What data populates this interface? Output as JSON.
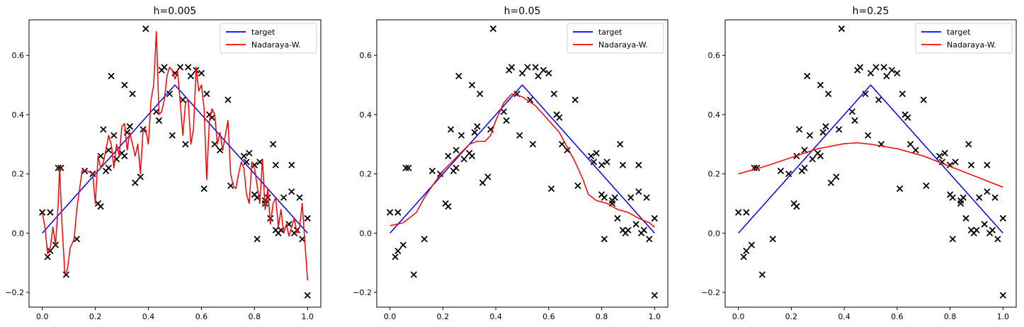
{
  "chart_data": [
    {
      "type": "line",
      "title": "h=0.005",
      "xlim": [
        -0.05,
        1.05
      ],
      "ylim": [
        -0.25,
        0.72
      ],
      "xticks": [
        "0.0",
        "0.2",
        "0.4",
        "0.6",
        "0.8",
        "1.0"
      ],
      "yticks": [
        "−0.2",
        "0.0",
        "0.2",
        "0.4",
        "0.6"
      ],
      "legend": {
        "position": "top-right",
        "entries": [
          "target",
          "Nadaraya-W."
        ]
      },
      "colors": {
        "target": "#0000ff",
        "fit": "#ff0000",
        "points": "#000000"
      },
      "series": [
        {
          "name": "target",
          "x": [
            0.0,
            0.5,
            1.0
          ],
          "y": [
            0.0,
            0.5,
            0.0
          ]
        },
        {
          "name": "Nadaraya-W.",
          "x": [
            0.0,
            0.01,
            0.02,
            0.03,
            0.04,
            0.05,
            0.06,
            0.065,
            0.075,
            0.085,
            0.095,
            0.105,
            0.12,
            0.13,
            0.15,
            0.17,
            0.19,
            0.2,
            0.21,
            0.22,
            0.23,
            0.24,
            0.25,
            0.26,
            0.27,
            0.28,
            0.29,
            0.3,
            0.31,
            0.32,
            0.33,
            0.34,
            0.35,
            0.36,
            0.37,
            0.38,
            0.39,
            0.4,
            0.41,
            0.42,
            0.43,
            0.44,
            0.45,
            0.46,
            0.47,
            0.48,
            0.49,
            0.5,
            0.51,
            0.52,
            0.53,
            0.54,
            0.55,
            0.56,
            0.57,
            0.58,
            0.59,
            0.6,
            0.61,
            0.62,
            0.63,
            0.64,
            0.65,
            0.66,
            0.67,
            0.68,
            0.69,
            0.7,
            0.71,
            0.72,
            0.73,
            0.74,
            0.75,
            0.76,
            0.77,
            0.78,
            0.79,
            0.8,
            0.81,
            0.82,
            0.83,
            0.84,
            0.85,
            0.86,
            0.87,
            0.88,
            0.89,
            0.9,
            0.91,
            0.92,
            0.93,
            0.94,
            0.95,
            0.96,
            0.97,
            0.98,
            0.99,
            1.0
          ],
          "y": [
            0.07,
            0.02,
            -0.07,
            -0.05,
            0.02,
            -0.04,
            0.1,
            0.22,
            0.02,
            -0.14,
            -0.12,
            -0.05,
            -0.02,
            0.08,
            0.21,
            0.21,
            0.2,
            0.1,
            0.26,
            0.22,
            0.24,
            0.28,
            0.33,
            0.3,
            0.22,
            0.3,
            0.26,
            0.36,
            0.37,
            0.28,
            0.34,
            0.3,
            0.26,
            0.3,
            0.2,
            0.35,
            0.35,
            0.3,
            0.45,
            0.5,
            0.68,
            0.4,
            0.41,
            0.45,
            0.53,
            0.56,
            0.55,
            0.52,
            0.55,
            0.44,
            0.33,
            0.44,
            0.45,
            0.3,
            0.35,
            0.56,
            0.48,
            0.5,
            0.42,
            0.18,
            0.38,
            0.42,
            0.4,
            0.3,
            0.34,
            0.28,
            0.33,
            0.38,
            0.2,
            0.16,
            0.15,
            0.2,
            0.24,
            0.22,
            0.13,
            0.1,
            0.24,
            0.22,
            0.16,
            0.1,
            0.25,
            0.08,
            0.15,
            0.03,
            0.1,
            0.12,
            0.02,
            0.08,
            0.0,
            0.03,
            -0.01,
            0.02,
            0.05,
            0.0,
            0.02,
            0.1,
            -0.03,
            -0.16
          ]
        }
      ],
      "points": {
        "x": [
          0.0,
          0.02,
          0.03,
          0.03,
          0.05,
          0.06,
          0.07,
          0.09,
          0.13,
          0.16,
          0.19,
          0.21,
          0.22,
          0.22,
          0.23,
          0.24,
          0.25,
          0.25,
          0.26,
          0.27,
          0.28,
          0.3,
          0.31,
          0.31,
          0.32,
          0.33,
          0.34,
          0.35,
          0.37,
          0.38,
          0.39,
          0.43,
          0.44,
          0.45,
          0.46,
          0.48,
          0.49,
          0.5,
          0.52,
          0.53,
          0.54,
          0.55,
          0.56,
          0.58,
          0.6,
          0.61,
          0.62,
          0.63,
          0.64,
          0.65,
          0.67,
          0.7,
          0.71,
          0.76,
          0.77,
          0.78,
          0.8,
          0.8,
          0.81,
          0.81,
          0.82,
          0.84,
          0.84,
          0.85,
          0.86,
          0.87,
          0.88,
          0.88,
          0.89,
          0.9,
          0.91,
          0.93,
          0.94,
          0.94,
          0.95,
          0.96,
          0.97,
          0.98,
          1.0,
          1.0
        ],
        "y": [
          0.07,
          -0.08,
          -0.06,
          0.07,
          -0.04,
          0.22,
          0.22,
          -0.14,
          -0.02,
          0.21,
          0.2,
          0.1,
          0.09,
          0.26,
          0.35,
          0.21,
          0.22,
          0.28,
          0.53,
          0.33,
          0.25,
          0.27,
          0.5,
          0.26,
          0.34,
          0.36,
          0.47,
          0.17,
          0.19,
          0.35,
          0.69,
          0.41,
          0.38,
          0.55,
          0.56,
          0.47,
          0.33,
          0.54,
          0.56,
          0.45,
          0.3,
          0.56,
          0.53,
          0.55,
          0.54,
          0.15,
          0.47,
          0.4,
          0.39,
          0.3,
          0.28,
          0.45,
          0.16,
          0.26,
          0.24,
          0.27,
          0.23,
          0.13,
          -0.02,
          0.12,
          0.24,
          0.1,
          0.11,
          0.12,
          0.05,
          0.3,
          0.23,
          0.01,
          0.0,
          0.01,
          0.12,
          0.03,
          0.14,
          0.23,
          0.0,
          0.01,
          0.12,
          -0.02,
          0.05,
          -0.21
        ]
      }
    },
    {
      "type": "line",
      "title": "h=0.05",
      "xlim": [
        -0.05,
        1.05
      ],
      "ylim": [
        -0.25,
        0.72
      ],
      "xticks": [
        "0.0",
        "0.2",
        "0.4",
        "0.6",
        "0.8",
        "1.0"
      ],
      "yticks": [
        "−0.2",
        "0.0",
        "0.2",
        "0.4",
        "0.6"
      ],
      "legend": {
        "position": "top-right",
        "entries": [
          "target",
          "Nadaraya-W."
        ]
      },
      "colors": {
        "target": "#0000ff",
        "fit": "#ff0000",
        "points": "#000000"
      },
      "series": [
        {
          "name": "target",
          "x": [
            0.0,
            0.5,
            1.0
          ],
          "y": [
            0.0,
            0.5,
            0.0
          ]
        },
        {
          "name": "Nadaraya-W.",
          "x": [
            0.0,
            0.05,
            0.1,
            0.13,
            0.16,
            0.2,
            0.25,
            0.3,
            0.33,
            0.36,
            0.38,
            0.4,
            0.43,
            0.46,
            0.5,
            0.55,
            0.6,
            0.64,
            0.67,
            0.7,
            0.73,
            0.75,
            0.78,
            0.82,
            0.86,
            0.9,
            0.94,
            0.98,
            1.0
          ],
          "y": [
            0.025,
            0.035,
            0.07,
            0.12,
            0.16,
            0.21,
            0.255,
            0.3,
            0.31,
            0.31,
            0.33,
            0.38,
            0.44,
            0.47,
            0.46,
            0.43,
            0.38,
            0.34,
            0.29,
            0.24,
            0.18,
            0.13,
            0.11,
            0.1,
            0.08,
            0.07,
            0.05,
            0.035,
            0.02
          ]
        }
      ],
      "points": {
        "x": [
          0.0,
          0.02,
          0.03,
          0.03,
          0.05,
          0.06,
          0.07,
          0.09,
          0.13,
          0.16,
          0.19,
          0.21,
          0.22,
          0.22,
          0.23,
          0.24,
          0.25,
          0.25,
          0.26,
          0.27,
          0.28,
          0.3,
          0.31,
          0.31,
          0.32,
          0.33,
          0.34,
          0.35,
          0.37,
          0.38,
          0.39,
          0.43,
          0.44,
          0.45,
          0.46,
          0.48,
          0.49,
          0.5,
          0.52,
          0.53,
          0.54,
          0.55,
          0.56,
          0.58,
          0.6,
          0.61,
          0.62,
          0.63,
          0.64,
          0.65,
          0.67,
          0.7,
          0.71,
          0.76,
          0.77,
          0.78,
          0.8,
          0.8,
          0.81,
          0.81,
          0.82,
          0.84,
          0.84,
          0.85,
          0.86,
          0.87,
          0.88,
          0.88,
          0.89,
          0.9,
          0.91,
          0.93,
          0.94,
          0.94,
          0.95,
          0.96,
          0.97,
          0.98,
          1.0,
          1.0
        ],
        "y": [
          0.07,
          -0.08,
          -0.06,
          0.07,
          -0.04,
          0.22,
          0.22,
          -0.14,
          -0.02,
          0.21,
          0.2,
          0.1,
          0.09,
          0.26,
          0.35,
          0.21,
          0.22,
          0.28,
          0.53,
          0.33,
          0.25,
          0.27,
          0.5,
          0.26,
          0.34,
          0.36,
          0.47,
          0.17,
          0.19,
          0.35,
          0.69,
          0.41,
          0.38,
          0.55,
          0.56,
          0.47,
          0.33,
          0.54,
          0.56,
          0.45,
          0.3,
          0.56,
          0.53,
          0.55,
          0.54,
          0.15,
          0.47,
          0.4,
          0.39,
          0.3,
          0.28,
          0.45,
          0.16,
          0.26,
          0.24,
          0.27,
          0.23,
          0.13,
          -0.02,
          0.12,
          0.24,
          0.1,
          0.11,
          0.12,
          0.05,
          0.3,
          0.23,
          0.01,
          0.0,
          0.01,
          0.12,
          0.03,
          0.14,
          0.23,
          0.0,
          0.01,
          0.12,
          -0.02,
          0.05,
          -0.21
        ]
      }
    },
    {
      "type": "line",
      "title": "h=0.25",
      "xlim": [
        -0.05,
        1.05
      ],
      "ylim": [
        -0.25,
        0.72
      ],
      "xticks": [
        "0.0",
        "0.2",
        "0.4",
        "0.6",
        "0.8",
        "1.0"
      ],
      "yticks": [
        "−0.2",
        "0.0",
        "0.2",
        "0.4",
        "0.6"
      ],
      "legend": {
        "position": "top-right",
        "entries": [
          "target",
          "Nadaraya-W."
        ]
      },
      "colors": {
        "target": "#0000ff",
        "fit": "#ff0000",
        "points": "#000000"
      },
      "series": [
        {
          "name": "target",
          "x": [
            0.0,
            0.5,
            1.0
          ],
          "y": [
            0.0,
            0.5,
            0.0
          ]
        },
        {
          "name": "Nadaraya-W.",
          "x": [
            0.0,
            0.1,
            0.2,
            0.3,
            0.4,
            0.45,
            0.5,
            0.6,
            0.7,
            0.8,
            0.9,
            1.0
          ],
          "y": [
            0.2,
            0.225,
            0.255,
            0.285,
            0.302,
            0.305,
            0.3,
            0.285,
            0.26,
            0.225,
            0.19,
            0.155
          ]
        }
      ],
      "points": {
        "x": [
          0.0,
          0.02,
          0.03,
          0.03,
          0.05,
          0.06,
          0.07,
          0.09,
          0.13,
          0.16,
          0.19,
          0.21,
          0.22,
          0.22,
          0.23,
          0.24,
          0.25,
          0.25,
          0.26,
          0.27,
          0.28,
          0.3,
          0.31,
          0.31,
          0.32,
          0.33,
          0.34,
          0.35,
          0.37,
          0.38,
          0.39,
          0.43,
          0.44,
          0.45,
          0.46,
          0.48,
          0.49,
          0.5,
          0.52,
          0.53,
          0.54,
          0.55,
          0.56,
          0.58,
          0.6,
          0.61,
          0.62,
          0.63,
          0.64,
          0.65,
          0.67,
          0.7,
          0.71,
          0.76,
          0.77,
          0.78,
          0.8,
          0.8,
          0.81,
          0.81,
          0.82,
          0.84,
          0.84,
          0.85,
          0.86,
          0.87,
          0.88,
          0.88,
          0.89,
          0.9,
          0.91,
          0.93,
          0.94,
          0.94,
          0.95,
          0.96,
          0.97,
          0.98,
          1.0,
          1.0
        ],
        "y": [
          0.07,
          -0.08,
          -0.06,
          0.07,
          -0.04,
          0.22,
          0.22,
          -0.14,
          -0.02,
          0.21,
          0.2,
          0.1,
          0.09,
          0.26,
          0.35,
          0.21,
          0.22,
          0.28,
          0.53,
          0.33,
          0.25,
          0.27,
          0.5,
          0.26,
          0.34,
          0.36,
          0.47,
          0.17,
          0.19,
          0.35,
          0.69,
          0.41,
          0.38,
          0.55,
          0.56,
          0.47,
          0.33,
          0.54,
          0.56,
          0.45,
          0.3,
          0.56,
          0.53,
          0.55,
          0.54,
          0.15,
          0.47,
          0.4,
          0.39,
          0.3,
          0.28,
          0.45,
          0.16,
          0.26,
          0.24,
          0.27,
          0.23,
          0.13,
          -0.02,
          0.12,
          0.24,
          0.1,
          0.11,
          0.12,
          0.05,
          0.3,
          0.23,
          0.01,
          0.0,
          0.01,
          0.12,
          0.03,
          0.14,
          0.23,
          0.0,
          0.01,
          0.12,
          -0.02,
          0.05,
          -0.21
        ]
      }
    }
  ]
}
